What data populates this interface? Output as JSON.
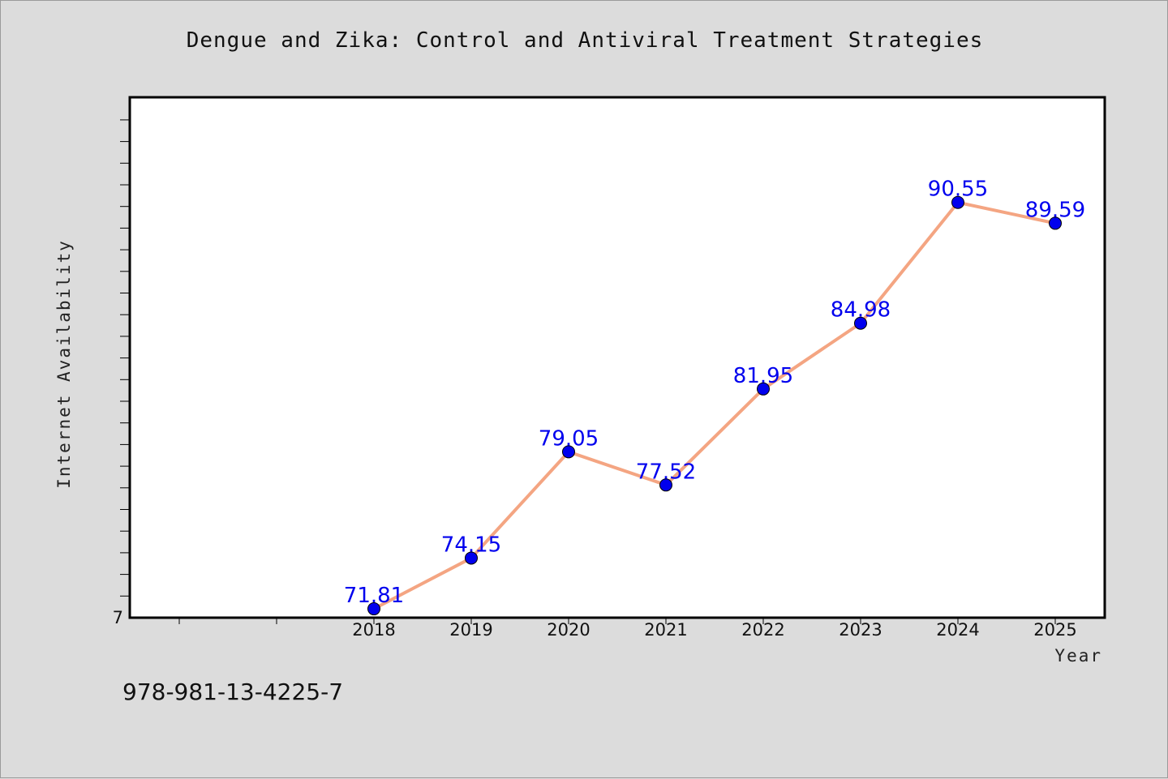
{
  "chart_data": {
    "type": "line",
    "title": "Dengue and Zika: Control and Antiviral Treatment Strategies",
    "xlabel": "Year",
    "ylabel": "Internet Availability",
    "x": [
      "2018",
      "2019",
      "2020",
      "2021",
      "2022",
      "2023",
      "2024",
      "2025"
    ],
    "series": [
      {
        "values": [
          71.81,
          74.15,
          79.05,
          77.52,
          81.95,
          84.98,
          90.55,
          89.59
        ],
        "data_labels": [
          "71.81",
          "74.15",
          "79.05",
          "77.52",
          "81.95",
          "84.98",
          "90.55",
          "89.59"
        ]
      }
    ],
    "ylim": [
      71.4,
      95.4
    ],
    "y_tick_labels": [
      "7"
    ],
    "grid": false,
    "colors": {
      "line": "#f4a582",
      "marker": "#0000ee",
      "label": "#0000ee",
      "plot_bg": "#ffffff",
      "page_bg": "#dcdcdc"
    }
  },
  "footer": {
    "isbn": "978-981-13-4225-7"
  }
}
